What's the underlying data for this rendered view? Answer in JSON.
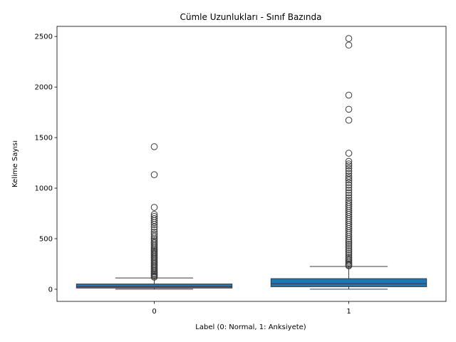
{
  "chart_data": {
    "type": "box",
    "title": "Cümle Uzunlukları - Sınıf Bazında",
    "xlabel": "Label (0: Normal, 1: Anksiyete)",
    "ylabel": "Kelime Sayısı",
    "categories": [
      "0",
      "1"
    ],
    "ylim": [
      -120,
      2600
    ],
    "yticks": [
      0,
      500,
      1000,
      1500,
      2000,
      2500
    ],
    "grid": false,
    "box_color": "#1f77b4",
    "boxes": [
      {
        "category": "0",
        "whislo": 1,
        "q1": 12,
        "median": 25,
        "q3": 52,
        "whishi": 112,
        "outliers": [
          1410,
          1133,
          810,
          740,
          720,
          700,
          680,
          660,
          640,
          615,
          590,
          565,
          545,
          525,
          505,
          490,
          475,
          460,
          445,
          430,
          415,
          400,
          388,
          376,
          364,
          352,
          340,
          328,
          316,
          304,
          292,
          280,
          268,
          256,
          244,
          232,
          220,
          208,
          196,
          184,
          172,
          160,
          150,
          140,
          130,
          120
        ]
      },
      {
        "category": "1",
        "whislo": 1,
        "q1": 25,
        "median": 55,
        "q3": 105,
        "whishi": 225,
        "outliers": [
          2480,
          2415,
          1920,
          1780,
          1672,
          1345,
          1265,
          1240,
          1220,
          1195,
          1170,
          1145,
          1120,
          1100,
          1080,
          1055,
          1030,
          1005,
          980,
          955,
          930,
          905,
          880,
          860,
          840,
          820,
          800,
          780,
          760,
          740,
          720,
          700,
          680,
          660,
          640,
          620,
          600,
          580,
          560,
          540,
          520,
          500,
          482,
          464,
          446,
          428,
          410,
          392,
          374,
          356,
          338,
          320,
          304,
          290,
          276,
          262,
          250,
          240,
          232
        ]
      }
    ]
  }
}
